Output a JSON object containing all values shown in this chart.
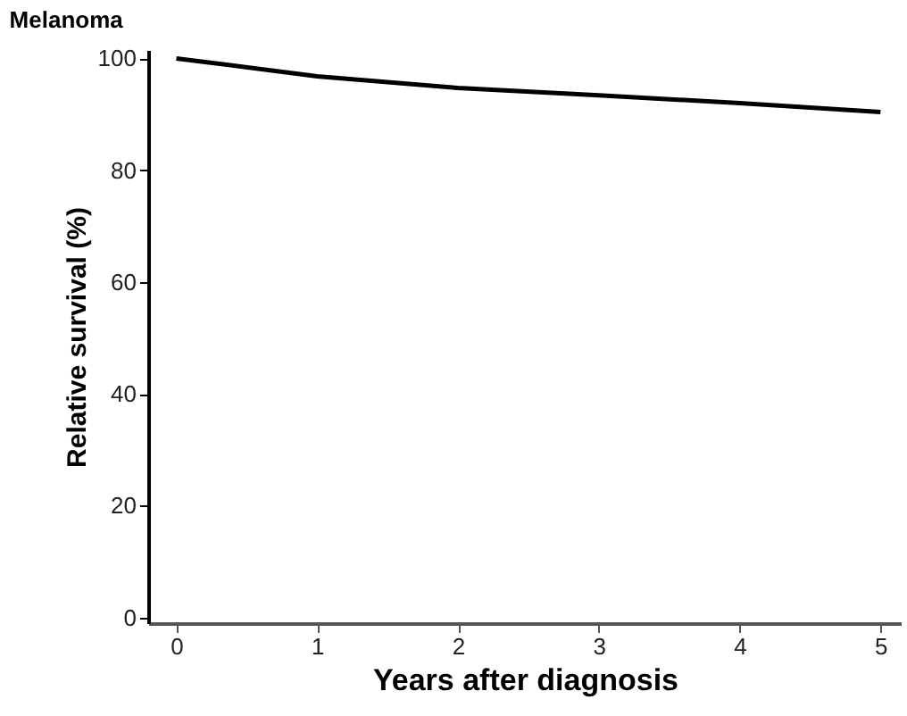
{
  "chart_data": {
    "type": "line",
    "title": "Melanoma",
    "xlabel": "Years after diagnosis",
    "ylabel": "Relative survival (%)",
    "x": [
      0,
      1,
      2,
      3,
      4,
      5
    ],
    "series": [
      {
        "color": "#000000",
        "values": [
          100,
          96.8,
          94.7,
          93.4,
          92.0,
          90.4
        ]
      }
    ],
    "xlim": [
      -0.2,
      5.15
    ],
    "ylim": [
      -1,
      101.5
    ],
    "xticks": [
      0,
      1,
      2,
      3,
      4,
      5
    ],
    "yticks": [
      0,
      20,
      40,
      60,
      80,
      100
    ],
    "grid": false,
    "marker": "none",
    "line_style": "solid"
  }
}
